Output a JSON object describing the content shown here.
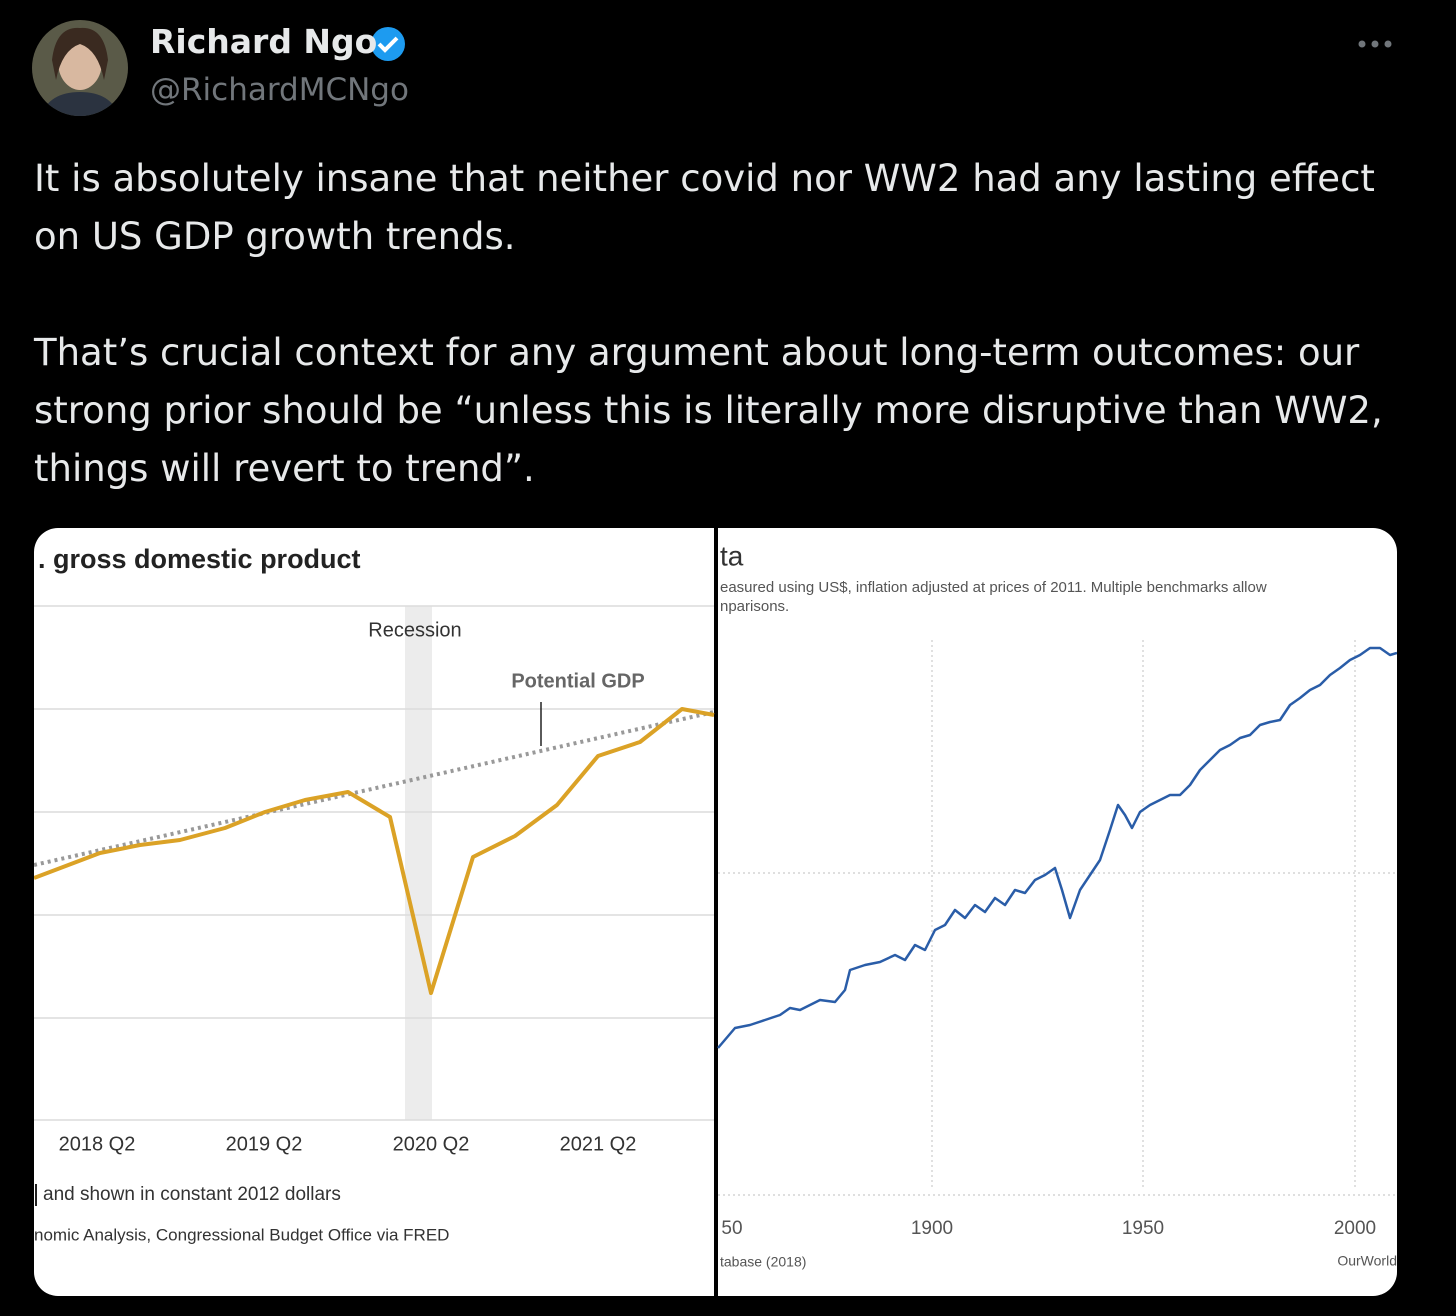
{
  "author": {
    "name": "Richard Ngo",
    "handle": "@RichardMCNgo"
  },
  "tweet": {
    "paragraphs": [
      "It is absolutely insane that neither covid nor WW2 had any lasting effect on US GDP growth trends.",
      "That’s crucial context for any argument about long-term outcomes: our strong prior should be “unless this is literally more disruptive than WW2, things will revert to trend”."
    ]
  },
  "images": [
    {
      "title": ". gross domestic product",
      "recession": "Recession",
      "potential": "Potential GDP",
      "x_labels": [
        "2018 Q2",
        "2019 Q2",
        "2020 Q2",
        "2021 Q2"
      ],
      "note": "and shown in constant 2012 dollars",
      "source": "nomic Analysis, Congressional Budget Office via FRED"
    },
    {
      "title": "ta",
      "subtitle": [
        "easured using US$, inflation adjusted at prices of 2011. Multiple benchmarks allow",
        "nparisons."
      ],
      "x_labels": [
        "50",
        "1900",
        "1950",
        "2000"
      ],
      "source": "tabase (2018)",
      "credit": "OurWorld"
    }
  ]
}
